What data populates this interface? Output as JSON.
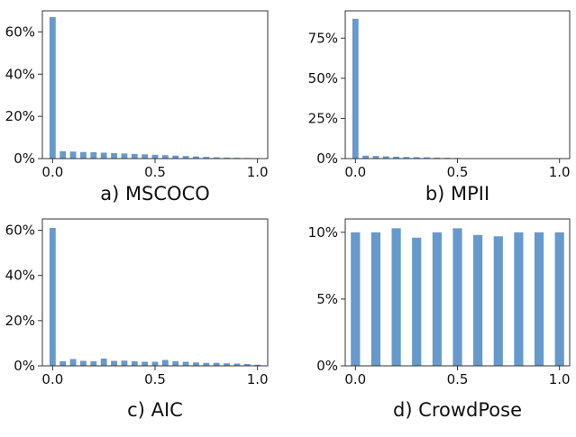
{
  "bar_color": "#6699cc",
  "chart_data": [
    {
      "type": "bar",
      "title": "a) MSCOCO",
      "xlim": [
        -0.05,
        1.05
      ],
      "ylim": [
        0,
        70
      ],
      "xticks": [
        0.0,
        0.5,
        1.0
      ],
      "xtick_labels": [
        "0.0",
        "0.5",
        "1.0"
      ],
      "yticks": [
        0,
        20,
        40,
        60
      ],
      "ytick_labels": [
        "0%",
        "20%",
        "40%",
        "60%"
      ],
      "bar_width": 0.03,
      "x": [
        0.0,
        0.05,
        0.1,
        0.15,
        0.2,
        0.25,
        0.3,
        0.35,
        0.4,
        0.45,
        0.5,
        0.55,
        0.6,
        0.65,
        0.7,
        0.75,
        0.8,
        0.85,
        0.9,
        0.95,
        1.0
      ],
      "values": [
        67,
        3.5,
        3.3,
        3.1,
        3.0,
        2.8,
        2.6,
        2.4,
        2.2,
        2.0,
        1.8,
        1.6,
        1.4,
        1.2,
        1.0,
        0.8,
        0.6,
        0.5,
        0.4,
        0.3,
        0.2
      ],
      "grid": false
    },
    {
      "type": "bar",
      "title": "b) MPII",
      "xlim": [
        -0.05,
        1.05
      ],
      "ylim": [
        0,
        92
      ],
      "xticks": [
        0.0,
        0.5,
        1.0
      ],
      "xtick_labels": [
        "0.0",
        "0.5",
        "1.0"
      ],
      "yticks": [
        0,
        25,
        50,
        75
      ],
      "ytick_labels": [
        "0%",
        "25%",
        "50%",
        "75%"
      ],
      "bar_width": 0.03,
      "x": [
        0.0,
        0.05,
        0.1,
        0.15,
        0.2,
        0.25,
        0.3,
        0.35,
        0.4,
        0.45,
        0.5,
        0.55,
        0.6,
        0.65,
        0.7,
        0.75,
        0.8,
        0.85,
        0.9,
        0.95,
        1.0
      ],
      "values": [
        87,
        1.8,
        1.6,
        1.4,
        1.2,
        1.0,
        0.9,
        0.8,
        0.6,
        0.5,
        0.4,
        0.3,
        0.25,
        0.2,
        0.15,
        0.1,
        0.1,
        0.1,
        0.05,
        0.05,
        0.05
      ],
      "grid": false
    },
    {
      "type": "bar",
      "title": "c) AIC",
      "xlim": [
        -0.05,
        1.05
      ],
      "ylim": [
        0,
        65
      ],
      "xticks": [
        0.0,
        0.5,
        1.0
      ],
      "xtick_labels": [
        "0.0",
        "0.5",
        "1.0"
      ],
      "yticks": [
        0,
        20,
        40,
        60
      ],
      "ytick_labels": [
        "0%",
        "20%",
        "40%",
        "60%"
      ],
      "bar_width": 0.03,
      "x": [
        0.0,
        0.05,
        0.1,
        0.15,
        0.2,
        0.25,
        0.3,
        0.35,
        0.4,
        0.45,
        0.5,
        0.55,
        0.6,
        0.65,
        0.7,
        0.75,
        0.8,
        0.85,
        0.9,
        0.95,
        1.0
      ],
      "values": [
        61,
        2.0,
        3.0,
        2.2,
        2.0,
        3.2,
        2.2,
        2.3,
        2.0,
        1.8,
        1.8,
        2.6,
        2.0,
        1.8,
        1.5,
        1.3,
        1.3,
        1.1,
        1.0,
        0.8,
        0.5
      ],
      "grid": false
    },
    {
      "type": "bar",
      "title": "d) CrowdPose",
      "xlim": [
        -0.05,
        1.05
      ],
      "ylim": [
        0,
        11
      ],
      "xticks": [
        0.0,
        0.5,
        1.0
      ],
      "xtick_labels": [
        "0.0",
        "0.5",
        "1.0"
      ],
      "yticks": [
        0,
        5,
        10
      ],
      "ytick_labels": [
        "0%",
        "5%",
        "10%"
      ],
      "bar_width": 0.045,
      "x": [
        0.0,
        0.1,
        0.2,
        0.3,
        0.4,
        0.5,
        0.6,
        0.7,
        0.8,
        0.9,
        1.0
      ],
      "values": [
        10.0,
        10.0,
        10.3,
        9.6,
        10.0,
        10.3,
        9.8,
        9.7,
        10.0,
        10.0,
        10.0
      ],
      "grid": false
    }
  ]
}
